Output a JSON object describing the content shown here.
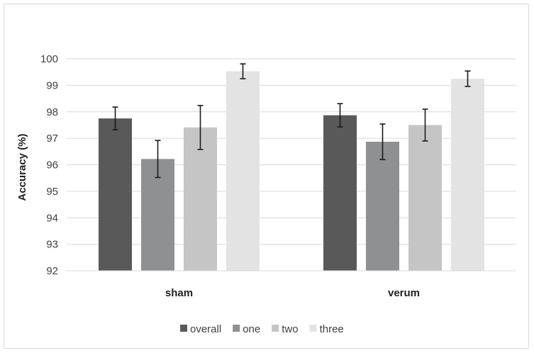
{
  "chart_data": {
    "type": "bar",
    "title": "",
    "xlabel": "",
    "ylabel": "Accuracy (%)",
    "ylim": [
      92,
      100
    ],
    "yticks": [
      92,
      93,
      94,
      95,
      96,
      97,
      98,
      99,
      100
    ],
    "grid": true,
    "legend_position": "bottom",
    "categories": [
      "sham",
      "verum"
    ],
    "series": [
      {
        "name": "overall",
        "color": "#595959",
        "values": [
          97.75,
          97.87
        ],
        "error": [
          0.43,
          0.44
        ]
      },
      {
        "name": "one",
        "color": "#8f9093",
        "values": [
          96.22,
          96.87
        ],
        "error": [
          0.7,
          0.67
        ]
      },
      {
        "name": "two",
        "color": "#c5c5c6",
        "values": [
          97.41,
          97.5
        ],
        "error": [
          0.83,
          0.6
        ]
      },
      {
        "name": "three",
        "color": "#e3e3e4",
        "values": [
          99.53,
          99.25
        ],
        "error": [
          0.28,
          0.29
        ]
      }
    ]
  }
}
